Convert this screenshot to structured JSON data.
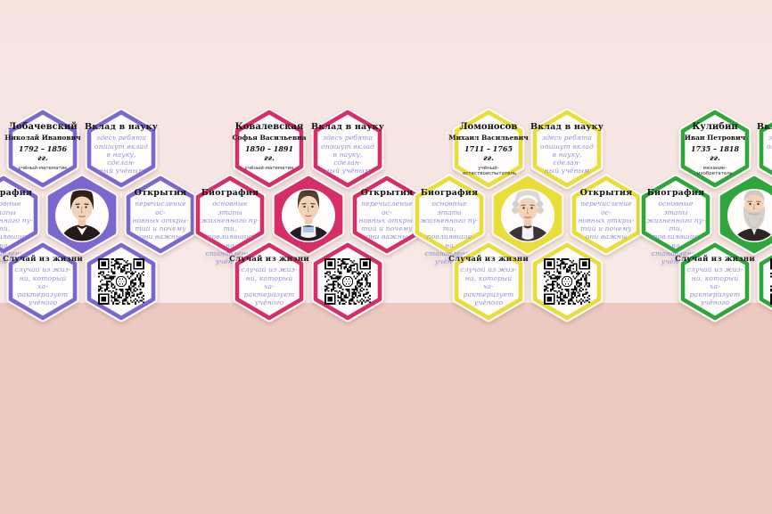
{
  "poster": {
    "background_top_color": "#f6e4e1",
    "background_bottom_color": "#f9edea",
    "floor_band_color": "#edcac1",
    "handwriting_color": "#8f92d9"
  },
  "card_labels": {
    "contribution": {
      "title": "Вклад в науку",
      "text": "здесь ребята\nопишут вклад\nв науку, сделан-\nный учёным"
    },
    "biography": {
      "title": "Биография",
      "text": "основные этапы\nжизненного пу-\nти, повлиявшие\nна становление\nучёного"
    },
    "discoveries": {
      "title": "Открытия",
      "text": "перечисление ос-\nновных откры-\nтий и почему\nони важны"
    },
    "life_story": {
      "title": "Случай из жизни",
      "text": "случай из жиз-\nни, который ха-\nрактеризует\nучёного"
    }
  },
  "scientists": [
    {
      "surname": "Лобачевский",
      "given_names": "Николай Иванович",
      "years": "1792 – 1856 гг.",
      "profession": "учёный-математик",
      "accent_color": "#7b68cf"
    },
    {
      "surname": "Ковалевская",
      "given_names": "Софья Васильевна",
      "years": "1850 – 1891 гг.",
      "profession": "учёный-математик",
      "accent_color": "#d62e67"
    },
    {
      "surname": "Ломоносов",
      "given_names": "Михаил Васильевич",
      "years": "1711 – 1765 гг.",
      "profession": "учёный-естествоиспытатель",
      "accent_color": "#e9dd3c"
    },
    {
      "surname": "Кулибин",
      "given_names": "Иван Петрович",
      "years": "1735 – 1818 гг.",
      "profession": "механик-изобретатель",
      "accent_color": "#2fa53c"
    }
  ]
}
